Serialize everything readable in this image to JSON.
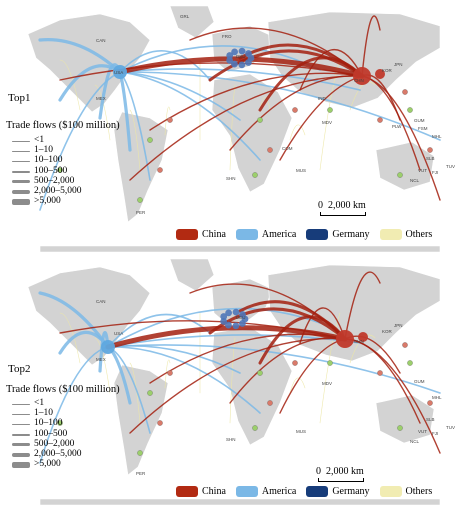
{
  "panels": [
    {
      "label": "Top1",
      "legend_title": "Trade flows ($100 million)",
      "flow_classes": [
        "<1",
        "1–10",
        "10–100",
        "100–500",
        "500–2,000",
        "2,000–5,000",
        ">5,000"
      ],
      "scale_zero": "0",
      "scale_distance": "2,000 km",
      "colors_legend": [
        {
          "name": "China",
          "color": "#b22a12"
        },
        {
          "name": "America",
          "color": "#7bb8e6"
        },
        {
          "name": "Germany",
          "color": "#173c7a"
        },
        {
          "name": "Others",
          "color": "#f1ecb2"
        }
      ],
      "country_labels": [
        "CAN",
        "USA",
        "MEX",
        "GRL",
        "FRO",
        "DEU",
        "CHN",
        "KOR",
        "JPN",
        "GUM",
        "PLW",
        "FSM",
        "MHL",
        "SLB",
        "TUV",
        "FJI",
        "VUT",
        "NCL",
        "MDV",
        "COM",
        "MUS",
        "SHN",
        "IND",
        "PER"
      ]
    },
    {
      "label": "Top2",
      "legend_title": "Trade flows ($100 million)",
      "flow_classes": [
        "<1",
        "1–10",
        "10–100",
        "100–500",
        "500–2,000",
        "2,000–5,000",
        ">5,000"
      ],
      "scale_zero": "0",
      "scale_distance": "2,000 km",
      "colors_legend": [
        {
          "name": "China",
          "color": "#b22a12"
        },
        {
          "name": "America",
          "color": "#7bb8e6"
        },
        {
          "name": "Germany",
          "color": "#173c7a"
        },
        {
          "name": "Others",
          "color": "#f1ecb2"
        }
      ],
      "country_labels": [
        "CAN",
        "USA",
        "MEX",
        "DEU",
        "CHN",
        "KOR",
        "JPN",
        "GUM",
        "MHL",
        "SLB",
        "TUV",
        "FJI",
        "VUT",
        "NCL",
        "MDV",
        "MUS",
        "SHN",
        "PER"
      ]
    }
  ],
  "colors": {
    "land": "#d3d3d3",
    "land_stroke": "#ffffff",
    "china_flow": "#a3200f",
    "america_flow": "#7bb8e6",
    "germany_node": "#4f77b8",
    "others_flow": "#ece7a6"
  }
}
